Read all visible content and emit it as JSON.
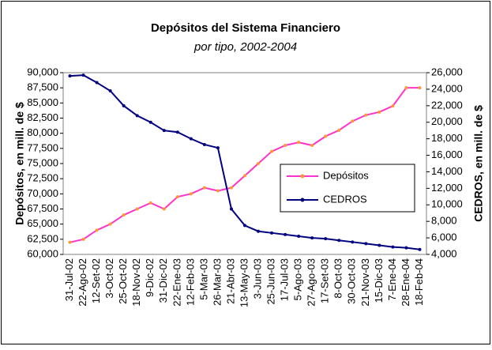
{
  "chart_data": {
    "type": "line",
    "title": "Depósitos del Sistema Financiero",
    "subtitle": "por tipo, 2002-2004",
    "ylabel": "Depósitos, en mill. de $",
    "y2label": "CEDROS, en mill. de $",
    "categories": [
      "31-Jul-02",
      "22-Ago-02",
      "12-Set-02",
      "3-Oct-02",
      "25-Oct-02",
      "18-Nov-02",
      "9-Dic-02",
      "31-Dic-02",
      "22-Ene-03",
      "12-Feb-03",
      "5-Mar-03",
      "26-Mar-03",
      "21-Abr-03",
      "13-May-03",
      "3-Jun-03",
      "25-Jun-03",
      "17-Jul-03",
      "5-Ago-03",
      "27-Ago-03",
      "17-Set-03",
      "8-Oct-03",
      "30-Oct-03",
      "21-Nov-03",
      "15-Dic-03",
      "7-Ene-04",
      "28-Ene-04",
      "18-Feb-04"
    ],
    "series": [
      {
        "name": "Depósitos",
        "color": "#ff33cc",
        "marker_color": "#ff9933",
        "values": [
          62000,
          62500,
          64000,
          65000,
          66500,
          67500,
          68500,
          67500,
          69500,
          70000,
          71000,
          70500,
          71000,
          73000,
          75000,
          77000,
          78000,
          78500,
          78000,
          79500,
          80500,
          82000,
          83000,
          83500,
          84500,
          87500,
          87500
        ]
      },
      {
        "name": "CEDROS",
        "color": "#000080",
        "marker_color": "#000080",
        "axis": "y2",
        "values": [
          25600,
          25700,
          24800,
          23800,
          22000,
          20800,
          20000,
          19000,
          18800,
          18000,
          17300,
          16900,
          9500,
          7500,
          6800,
          6600,
          6400,
          6200,
          6000,
          5900,
          5700,
          5500,
          5300,
          5100,
          4900,
          4800,
          4600
        ]
      }
    ],
    "ylim": [
      60000,
      90000
    ],
    "yticks": [
      {
        "value": 60000,
        "label": "60,000"
      },
      {
        "value": 62500,
        "label": "62,500"
      },
      {
        "value": 65000,
        "label": "65,000"
      },
      {
        "value": 67500,
        "label": "67,500"
      },
      {
        "value": 70000,
        "label": "70,000"
      },
      {
        "value": 72500,
        "label": "72,500"
      },
      {
        "value": 75000,
        "label": "75,000"
      },
      {
        "value": 77500,
        "label": "77,500"
      },
      {
        "value": 80000,
        "label": "80,000"
      },
      {
        "value": 82500,
        "label": "82,500"
      },
      {
        "value": 85000,
        "label": "85,000"
      },
      {
        "value": 87500,
        "label": "87,500"
      },
      {
        "value": 90000,
        "label": "90,000"
      }
    ],
    "y2lim": [
      4000,
      26000
    ],
    "y2ticks": [
      {
        "value": 4000,
        "label": "4,000"
      },
      {
        "value": 6000,
        "label": "6,000"
      },
      {
        "value": 8000,
        "label": "8,000"
      },
      {
        "value": 10000,
        "label": "10,000"
      },
      {
        "value": 12000,
        "label": "12,000"
      },
      {
        "value": 14000,
        "label": "14,000"
      },
      {
        "value": 16000,
        "label": "16,000"
      },
      {
        "value": 18000,
        "label": "18,000"
      },
      {
        "value": 20000,
        "label": "20,000"
      },
      {
        "value": 22000,
        "label": "22,000"
      },
      {
        "value": 24000,
        "label": "24,000"
      },
      {
        "value": 26000,
        "label": "26,000"
      }
    ],
    "legend": "right"
  }
}
